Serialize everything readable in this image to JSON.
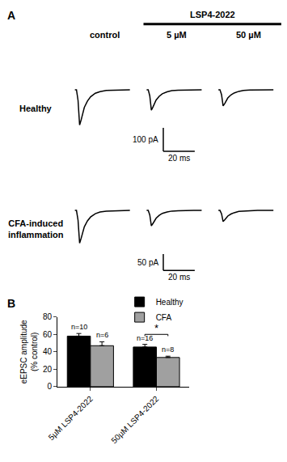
{
  "panel_a": {
    "label": "A",
    "drug": "LSP4-2022",
    "columns": [
      "control",
      "5 µM",
      "50 µM"
    ],
    "t": [
      0,
      1,
      2,
      2.5,
      3,
      4,
      5,
      6,
      8,
      10,
      13,
      16,
      20,
      25,
      30,
      35
    ],
    "rows": [
      {
        "label_lines": [
          "Healthy"
        ],
        "xlim": [
          -2,
          40
        ],
        "ylim": [
          -300,
          20
        ],
        "scale_bar": {
          "x": 20,
          "x_label": "20 ms",
          "y": 100,
          "y_label": "100 pA"
        },
        "traces": [
          [
            0,
            0,
            -45,
            -120,
            -150,
            -128,
            -98,
            -75,
            -48,
            -30,
            -15,
            -8,
            -3,
            -2,
            0,
            0
          ],
          [
            0,
            0,
            -26,
            -70,
            -87,
            -74,
            -57,
            -44,
            -28,
            -17,
            -9,
            -4,
            -2,
            -1,
            0,
            0
          ],
          [
            0,
            0,
            -21,
            -55,
            -69,
            -59,
            -45,
            -35,
            -22,
            -14,
            -7,
            -3,
            -1,
            -1,
            0,
            0
          ]
        ]
      },
      {
        "label_lines": [
          "CFA-induced",
          "inflammation"
        ],
        "xlim": [
          -2,
          40
        ],
        "ylim": [
          -210,
          12
        ],
        "scale_bar": {
          "x": 20,
          "x_label": "20 ms",
          "y": 50,
          "y_label": "50 pA"
        },
        "traces": [
          [
            0,
            0,
            -30,
            -80,
            -100,
            -85,
            -65,
            -50,
            -32,
            -20,
            -10,
            -5,
            -2,
            -1,
            0,
            0
          ],
          [
            0,
            0,
            -14,
            -38,
            -47,
            -40,
            -31,
            -24,
            -15,
            -9,
            -5,
            -2,
            -1,
            0,
            0,
            0
          ],
          [
            0,
            0,
            -10,
            -27,
            -34,
            -29,
            -22,
            -17,
            -11,
            -7,
            -3,
            -2,
            -1,
            0,
            0,
            0
          ]
        ]
      }
    ]
  },
  "chart_data": {
    "label": "B",
    "type": "bar",
    "categories": [
      "5µM LSP4-2022",
      "50µM LSP4-2022"
    ],
    "ylabel": [
      "eEPSC amplitude",
      "(% control)"
    ],
    "ylim": [
      0,
      80
    ],
    "yticks": [
      0,
      20,
      40,
      60,
      80
    ],
    "grid": false,
    "legend": "top",
    "series": [
      {
        "name": "Healthy",
        "color": "#000000",
        "values": [
          58,
          45.5
        ],
        "errors": [
          3,
          3
        ],
        "n_labels": [
          "n=10",
          "n=16"
        ]
      },
      {
        "name": "CFA",
        "color": "#a0a0a0",
        "values": [
          47,
          33.5
        ],
        "errors": [
          4.5,
          1.5
        ],
        "n_labels": [
          "n=6",
          "n=8"
        ]
      }
    ],
    "significance": [
      {
        "category": "50µM LSP4-2022",
        "label": "*",
        "y": 60
      }
    ]
  }
}
